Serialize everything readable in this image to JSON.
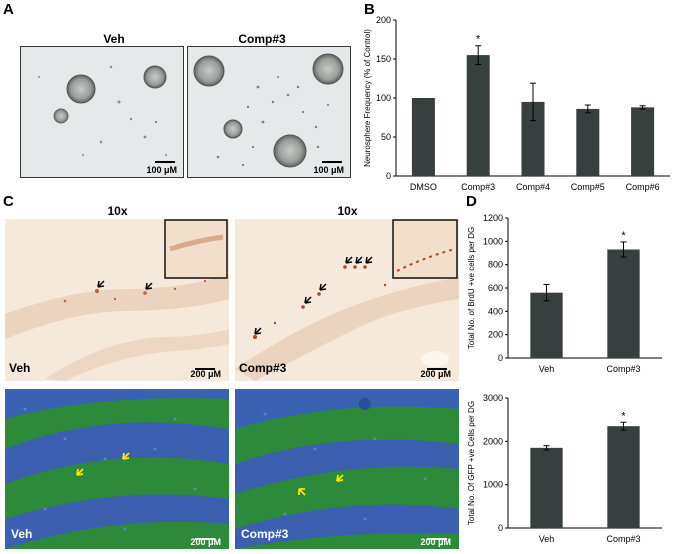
{
  "panels": {
    "A": {
      "letter": "A",
      "images": [
        {
          "title": "Veh",
          "scale": "100 μM"
        },
        {
          "title": "Comp#3",
          "scale": "100 μM"
        }
      ]
    },
    "B": {
      "letter": "B"
    },
    "C": {
      "letter": "C",
      "top": [
        {
          "title": "10x",
          "label": "Veh",
          "scale": "200 μM"
        },
        {
          "title": "10x",
          "label": "Comp#3",
          "scale": "200 μM"
        }
      ],
      "bottom": [
        {
          "label": "Veh",
          "scale": "200 μM"
        },
        {
          "label": "Comp#3",
          "scale": "200 μM"
        }
      ]
    },
    "D": {
      "letter": "D"
    }
  },
  "colors": {
    "bar": "#37403f",
    "ihc_bg": "#f4e7d8",
    "ihc_stain": "#9a3d16",
    "fluor_green": "#2e8a35",
    "fluor_blue": "#3a58a8"
  },
  "chart_data": [
    {
      "type": "bar",
      "categories": [
        "DMSO",
        "Comp#3",
        "Comp#4",
        "Comp#5",
        "Comp#6"
      ],
      "values": [
        100,
        155,
        95,
        86,
        88
      ],
      "errors": [
        0,
        12,
        24,
        5,
        2
      ],
      "significance": [
        "",
        "*",
        "",
        "",
        ""
      ],
      "ylabel": "Neurosphere Frequency (% of Control)",
      "ylim": [
        0,
        200
      ],
      "yticks": [
        0,
        50,
        100,
        150,
        200
      ]
    },
    {
      "type": "bar",
      "categories": [
        "Veh",
        "Comp#3"
      ],
      "values": [
        560,
        930
      ],
      "errors": [
        70,
        65
      ],
      "significance": [
        "",
        "*"
      ],
      "ylabel": "Total No. of BrdU +ve cells per DG",
      "ylim": [
        0,
        1200
      ],
      "yticks": [
        0,
        200,
        400,
        600,
        800,
        1000,
        1200
      ]
    },
    {
      "type": "bar",
      "categories": [
        "Veh",
        "Comp#3"
      ],
      "values": [
        1850,
        2350
      ],
      "errors": [
        50,
        90
      ],
      "significance": [
        "",
        "*"
      ],
      "ylabel": "Total No. Of GFP +ve Cells per DG",
      "ylim": [
        0,
        3000
      ],
      "yticks": [
        0,
        1000,
        2000,
        3000
      ]
    }
  ]
}
